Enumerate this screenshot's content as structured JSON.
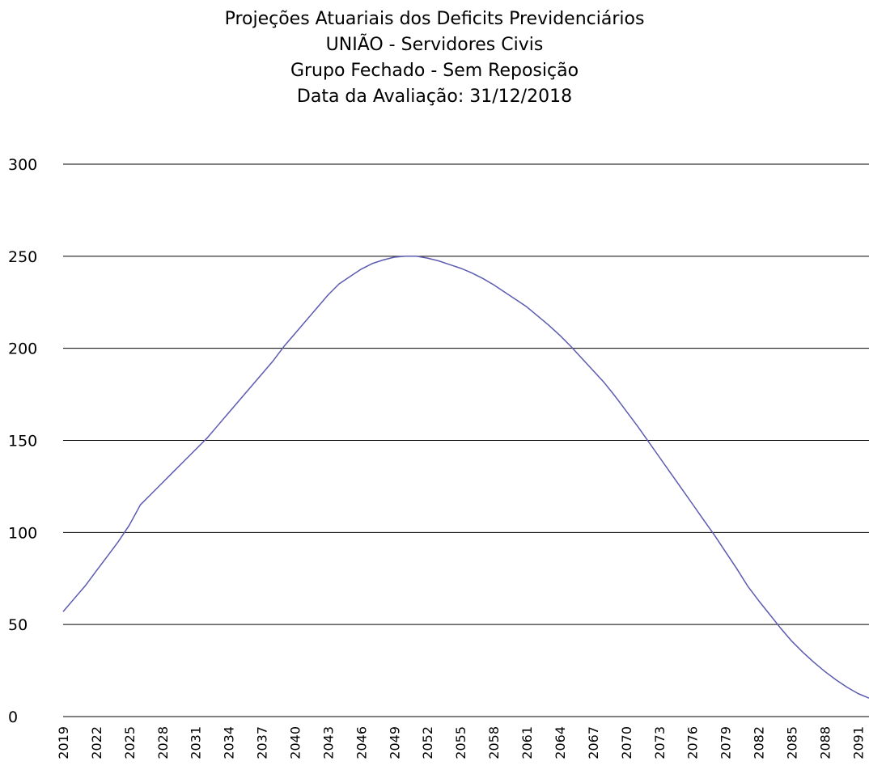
{
  "chart_data": {
    "type": "line",
    "title": [
      "Projeções Atuariais dos Deficits Previdenciários",
      "UNIÃO - Servidores Civis",
      "Grupo Fechado - Sem Reposição",
      "Data da Avaliação: 31/12/2018"
    ],
    "xlabel": "",
    "ylabel": "",
    "ylim": [
      0,
      300
    ],
    "yticks": [
      0,
      50,
      100,
      150,
      200,
      250,
      300
    ],
    "xlim": [
      2019,
      2092
    ],
    "xtick_labels": [
      "2019",
      "2022",
      "2025",
      "2028",
      "2031",
      "2034",
      "2037",
      "2040",
      "2043",
      "2046",
      "2049",
      "2052",
      "2055",
      "2058",
      "2061",
      "2064",
      "2067",
      "2070",
      "2073",
      "2076",
      "2079",
      "2082",
      "2085",
      "2088",
      "2091"
    ],
    "grid": "horizontal",
    "legend": "none",
    "line_color": "#5b5bb0",
    "series": [
      {
        "x": [
          2019,
          2020,
          2021,
          2022,
          2023,
          2024,
          2025,
          2026,
          2027,
          2028,
          2029,
          2030,
          2031,
          2032,
          2033,
          2034,
          2035,
          2036,
          2037,
          2038,
          2039,
          2040,
          2041,
          2042,
          2043,
          2044,
          2045,
          2046,
          2047,
          2048,
          2049,
          2050,
          2051,
          2052,
          2053,
          2054,
          2055,
          2056,
          2057,
          2058,
          2059,
          2060,
          2061,
          2062,
          2063,
          2064,
          2065,
          2066,
          2067,
          2068,
          2069,
          2070,
          2071,
          2072,
          2073,
          2074,
          2075,
          2076,
          2077,
          2078,
          2079,
          2080,
          2081,
          2082,
          2083,
          2084,
          2085,
          2086,
          2087,
          2088,
          2089,
          2090,
          2091,
          2092
        ],
        "values": [
          57,
          64,
          71,
          79,
          87,
          95,
          104,
          115,
          121,
          127,
          133,
          139,
          145,
          151,
          158,
          165,
          172,
          179,
          186,
          193,
          201,
          208,
          215,
          222,
          229,
          235,
          239,
          243,
          246,
          248,
          249.5,
          250,
          250,
          249,
          247.5,
          245.5,
          243.5,
          241,
          238,
          234.5,
          230.5,
          226.5,
          222.5,
          217.5,
          212.5,
          207,
          201,
          194.5,
          188,
          181.5,
          174,
          166,
          158,
          149.5,
          141,
          132.5,
          124,
          115.5,
          107,
          98.5,
          89.5,
          80.5,
          71,
          63,
          55.5,
          48,
          41,
          35,
          29.5,
          24.5,
          20,
          16,
          12.5,
          10
        ]
      }
    ]
  }
}
